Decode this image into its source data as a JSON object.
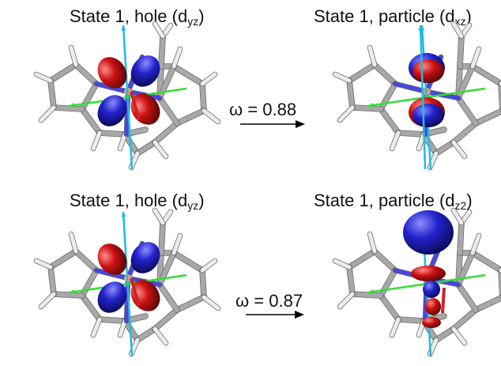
{
  "panels": [
    {
      "title_prefix": "State 1, hole (d",
      "orbital": "yz",
      "title_suffix": ")"
    },
    {
      "title_prefix": "State 1, particle (d",
      "orbital": "xz",
      "title_suffix": ")"
    },
    {
      "title_prefix": "State 1, hole (d",
      "orbital": "yz",
      "title_suffix": ")"
    },
    {
      "title_prefix": "State 1, particle (d",
      "orbital": "z2",
      "title_suffix": ")"
    }
  ],
  "transitions": [
    {
      "label": "ω = 0.88"
    },
    {
      "label": "ω = 0.87"
    }
  ],
  "colors": {
    "lobe_positive": "#2222cc",
    "lobe_negative": "#cc1111",
    "bond": "#a8a8a8",
    "hydrogen": "#ececec",
    "nitrogen": "#4646e0",
    "metal": "#d9a27a",
    "axis_green": "#33dd33",
    "axis_cyan": "#22bbdd",
    "axis_red": "#cc2222"
  }
}
